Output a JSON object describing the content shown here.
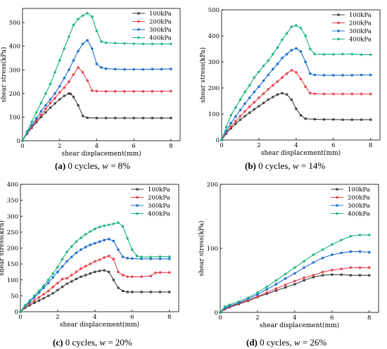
{
  "chart_data": [
    {
      "type": "line",
      "xlabel": "shear displacement(mm)",
      "ylabel": "shear stress(kPa)",
      "xlim": [
        0,
        8.5
      ],
      "ylim": [
        0,
        560
      ],
      "xticks": [
        0,
        2,
        4,
        6,
        8
      ],
      "yticks": [
        0,
        100,
        200,
        300,
        400,
        500
      ],
      "legend_position": "top-right",
      "caption": {
        "letter": "(a)",
        "text": " 0 cycles, ",
        "var": "w",
        "value": " = 8%"
      },
      "series": [
        {
          "name": "100kPa",
          "color": "#404040",
          "x": [
            0,
            0.25,
            0.5,
            0.75,
            1.0,
            1.25,
            1.5,
            1.75,
            2.0,
            2.25,
            2.5,
            2.6,
            2.75,
            3.0,
            3.25,
            3.5,
            4,
            4.5,
            5,
            5.5,
            6,
            6.5,
            7,
            7.5,
            8
          ],
          "y": [
            0,
            30,
            55,
            78,
            100,
            120,
            140,
            158,
            175,
            190,
            200,
            198,
            185,
            150,
            105,
            97,
            96,
            96,
            96,
            96,
            96,
            96,
            96,
            96,
            96
          ]
        },
        {
          "name": "200kPa",
          "color": "#e8434c",
          "x": [
            0,
            0.25,
            0.5,
            0.75,
            1.0,
            1.25,
            1.5,
            1.75,
            2.0,
            2.25,
            2.5,
            2.75,
            3.0,
            3.25,
            3.5,
            3.75,
            4,
            4.5,
            5,
            5.5,
            6,
            6.5,
            7,
            7.5,
            8
          ],
          "y": [
            0,
            32,
            60,
            85,
            110,
            135,
            160,
            180,
            205,
            225,
            250,
            280,
            310,
            290,
            255,
            212,
            210,
            209,
            209,
            209,
            209,
            209,
            209,
            209,
            210
          ]
        },
        {
          "name": "300kPa",
          "color": "#1f6fd1",
          "x": [
            0,
            0.25,
            0.5,
            0.75,
            1.0,
            1.25,
            1.5,
            1.75,
            2.0,
            2.25,
            2.5,
            2.75,
            3.0,
            3.25,
            3.5,
            3.75,
            4,
            4.25,
            4.5,
            5,
            5.5,
            6,
            6.5,
            7,
            7.5,
            8
          ],
          "y": [
            0,
            35,
            65,
            95,
            125,
            150,
            175,
            200,
            230,
            265,
            300,
            340,
            380,
            410,
            425,
            390,
            325,
            310,
            305,
            303,
            302,
            302,
            302,
            303,
            303,
            304
          ]
        },
        {
          "name": "400kPa",
          "color": "#19b37a",
          "x": [
            0,
            0.25,
            0.5,
            0.75,
            1.0,
            1.25,
            1.5,
            1.75,
            2.0,
            2.25,
            2.5,
            2.75,
            3.0,
            3.25,
            3.5,
            3.75,
            4,
            4.25,
            4.5,
            5,
            5.5,
            6,
            6.5,
            7,
            7.5,
            8
          ],
          "y": [
            0,
            40,
            80,
            120,
            160,
            200,
            240,
            290,
            340,
            390,
            440,
            490,
            515,
            530,
            540,
            525,
            465,
            420,
            415,
            413,
            412,
            411,
            410,
            410,
            410,
            410
          ]
        }
      ]
    },
    {
      "type": "line",
      "xlabel": "shear displacement(mm)",
      "ylabel": "shear stress(kPa)",
      "xlim": [
        0,
        8.5
      ],
      "ylim": [
        0,
        500
      ],
      "xticks": [
        0,
        2,
        4,
        6,
        8
      ],
      "yticks": [
        0,
        100,
        200,
        300,
        400,
        500
      ],
      "legend_position": "top-right",
      "caption": {
        "letter": "(b)",
        "text": " 0 cycles, ",
        "var": "w",
        "value": " = 14%"
      },
      "series": [
        {
          "name": "100kPa",
          "color": "#404040",
          "x": [
            0,
            0.25,
            0.5,
            0.75,
            1.0,
            1.25,
            1.5,
            1.75,
            2.0,
            2.25,
            2.5,
            2.75,
            3.0,
            3.25,
            3.5,
            3.75,
            4,
            4.25,
            4.5,
            5,
            5.5,
            6,
            6.5,
            7,
            7.5,
            8
          ],
          "y": [
            0,
            25,
            45,
            62,
            78,
            92,
            105,
            118,
            130,
            142,
            155,
            165,
            175,
            180,
            175,
            155,
            120,
            95,
            82,
            80,
            79,
            79,
            78,
            78,
            78,
            78
          ]
        },
        {
          "name": "200kPa",
          "color": "#e8434c",
          "x": [
            0,
            0.25,
            0.5,
            0.75,
            1.0,
            1.25,
            1.5,
            1.75,
            2.0,
            2.25,
            2.5,
            2.75,
            3.0,
            3.25,
            3.5,
            3.75,
            4,
            4.25,
            4.5,
            4.75,
            5,
            5.5,
            6,
            6.5,
            7,
            7.5,
            8
          ],
          "y": [
            0,
            30,
            52,
            72,
            92,
            110,
            128,
            145,
            162,
            178,
            195,
            210,
            225,
            240,
            255,
            268,
            260,
            235,
            205,
            180,
            178,
            177,
            177,
            177,
            177,
            177,
            177
          ]
        },
        {
          "name": "300kPa",
          "color": "#1f6fd1",
          "x": [
            0,
            0.25,
            0.5,
            0.75,
            1.0,
            1.25,
            1.5,
            1.75,
            2.0,
            2.25,
            2.5,
            2.75,
            3.0,
            3.25,
            3.5,
            3.75,
            4,
            4.25,
            4.5,
            4.75,
            5,
            5.5,
            6,
            6.5,
            7,
            7.5,
            8
          ],
          "y": [
            0,
            35,
            65,
            90,
            115,
            140,
            162,
            185,
            205,
            228,
            250,
            272,
            292,
            315,
            330,
            345,
            352,
            340,
            300,
            255,
            250,
            249,
            249,
            249,
            249,
            250,
            250
          ]
        },
        {
          "name": "400kPa",
          "color": "#19b37a",
          "x": [
            0,
            0.25,
            0.5,
            0.75,
            1.0,
            1.25,
            1.5,
            1.75,
            2.0,
            2.25,
            2.5,
            2.75,
            3.0,
            3.25,
            3.5,
            3.75,
            4,
            4.25,
            4.5,
            4.75,
            5,
            5.5,
            6,
            6.5,
            7,
            7.5,
            8
          ],
          "y": [
            0,
            50,
            95,
            125,
            155,
            185,
            210,
            240,
            262,
            285,
            305,
            330,
            355,
            385,
            410,
            435,
            440,
            430,
            400,
            350,
            330,
            329,
            329,
            330,
            330,
            328,
            328
          ]
        }
      ]
    },
    {
      "type": "line",
      "xlabel": "shear displacement(mm)",
      "ylabel": "shear stress(kPa)",
      "xlim": [
        0,
        8.5
      ],
      "ylim": [
        0,
        400
      ],
      "xticks": [
        0,
        2,
        4,
        6,
        8
      ],
      "yticks": [
        0,
        50,
        100,
        150,
        200,
        250,
        300,
        350,
        400
      ],
      "legend_position": "top-right",
      "caption": {
        "letter": "(c)",
        "text": " 0 cycles, ",
        "var": "w",
        "value": " = 20%"
      },
      "series": [
        {
          "name": "100kPa",
          "color": "#404040",
          "x": [
            0,
            0.25,
            0.5,
            0.75,
            1.0,
            1.25,
            1.5,
            1.75,
            2.0,
            2.25,
            2.5,
            2.75,
            3.0,
            3.25,
            3.5,
            3.75,
            4,
            4.25,
            4.5,
            4.75,
            5,
            5.25,
            5.5,
            5.75,
            6,
            6.5,
            7,
            7.5,
            8
          ],
          "y": [
            0,
            12,
            20,
            28,
            35,
            42,
            50,
            58,
            68,
            78,
            88,
            95,
            103,
            110,
            115,
            120,
            125,
            128,
            130,
            125,
            100,
            75,
            65,
            62,
            62,
            62,
            62,
            62,
            62
          ]
        },
        {
          "name": "200kPa",
          "color": "#e8434c",
          "x": [
            0,
            0.25,
            0.5,
            0.75,
            1.0,
            1.25,
            1.5,
            1.75,
            2.0,
            2.25,
            2.5,
            2.75,
            3.0,
            3.25,
            3.5,
            3.75,
            4,
            4.25,
            4.5,
            4.75,
            5,
            5.25,
            5.5,
            5.75,
            6,
            6.5,
            7,
            7.25,
            7.5,
            8
          ],
          "y": [
            0,
            15,
            25,
            35,
            45,
            55,
            65,
            78,
            90,
            103,
            105,
            115,
            125,
            135,
            143,
            150,
            158,
            163,
            170,
            175,
            165,
            125,
            115,
            110,
            110,
            110,
            112,
            122,
            123,
            123
          ]
        },
        {
          "name": "300kPa",
          "color": "#1f6fd1",
          "x": [
            0,
            0.25,
            0.5,
            0.75,
            1.0,
            1.25,
            1.5,
            1.75,
            2.0,
            2.25,
            2.5,
            2.75,
            3.0,
            3.25,
            3.5,
            3.75,
            4,
            4.25,
            4.5,
            4.75,
            5,
            5.25,
            5.5,
            5.75,
            6,
            6.5,
            7,
            7.5,
            8
          ],
          "y": [
            0,
            18,
            30,
            45,
            60,
            75,
            90,
            108,
            125,
            142,
            158,
            172,
            185,
            195,
            203,
            210,
            215,
            220,
            225,
            228,
            222,
            195,
            172,
            168,
            167,
            166,
            166,
            166,
            166
          ]
        },
        {
          "name": "400kPa",
          "color": "#19b37a",
          "x": [
            0,
            0.25,
            0.5,
            0.75,
            1.0,
            1.25,
            1.5,
            1.75,
            2.0,
            2.25,
            2.5,
            2.75,
            3.0,
            3.25,
            3.5,
            3.75,
            4,
            4.25,
            4.5,
            4.75,
            5,
            5.25,
            5.5,
            5.75,
            6,
            6.25,
            6.5,
            7,
            7.5,
            8
          ],
          "y": [
            0,
            20,
            35,
            50,
            65,
            82,
            100,
            120,
            140,
            165,
            188,
            205,
            220,
            232,
            243,
            252,
            260,
            266,
            270,
            273,
            276,
            280,
            268,
            230,
            195,
            175,
            172,
            172,
            173,
            173
          ]
        }
      ]
    },
    {
      "type": "line",
      "xlabel": "shear displacement(mm)",
      "ylabel": "shear stress(kPa)",
      "xlim": [
        0,
        8.5
      ],
      "ylim": [
        0,
        200
      ],
      "xticks": [
        0,
        2,
        4,
        6,
        8
      ],
      "yticks": [
        0,
        100,
        200
      ],
      "legend_position": "top-right",
      "caption": {
        "letter": "(d)",
        "text": " 0 cycles, ",
        "var": "w",
        "value": " = 26%"
      },
      "series": [
        {
          "name": "100kPa",
          "color": "#404040",
          "x": [
            0,
            0.25,
            0.5,
            1.0,
            1.5,
            2.0,
            2.5,
            3.0,
            3.5,
            4.0,
            4.5,
            5.0,
            5.5,
            6.0,
            6.5,
            7.0,
            7.5,
            8.0
          ],
          "y": [
            0,
            5,
            8,
            13,
            18,
            24,
            29,
            34,
            39,
            44,
            50,
            55,
            58,
            59,
            59,
            58,
            58,
            58
          ]
        },
        {
          "name": "200kPa",
          "color": "#e8434c",
          "x": [
            0,
            0.25,
            0.5,
            1.0,
            1.5,
            2.0,
            2.5,
            3.0,
            3.5,
            4.0,
            4.5,
            5.0,
            5.5,
            6.0,
            6.5,
            7.0,
            7.5,
            8.0
          ],
          "y": [
            0,
            6,
            9,
            14,
            19,
            25,
            31,
            37,
            43,
            49,
            54,
            58,
            63,
            66,
            68,
            70,
            70,
            70
          ]
        },
        {
          "name": "300kPa",
          "color": "#1f6fd1",
          "x": [
            0,
            0.25,
            0.5,
            1.0,
            1.5,
            2.0,
            2.5,
            3.0,
            3.5,
            4.0,
            4.5,
            5.0,
            5.5,
            6.0,
            6.5,
            7.0,
            7.5,
            8.0
          ],
          "y": [
            0,
            7,
            10,
            15,
            21,
            28,
            36,
            44,
            53,
            61,
            70,
            78,
            85,
            90,
            93,
            95,
            95,
            94
          ]
        },
        {
          "name": "400kPa",
          "color": "#19b37a",
          "x": [
            0,
            0.25,
            0.5,
            1.0,
            1.5,
            2.0,
            2.5,
            3.0,
            3.5,
            4.0,
            4.5,
            5.0,
            5.5,
            6.0,
            6.5,
            7.0,
            7.5,
            8.0
          ],
          "y": [
            0,
            9,
            12,
            17,
            23,
            31,
            40,
            50,
            60,
            70,
            80,
            90,
            98,
            106,
            113,
            119,
            121,
            121
          ]
        }
      ]
    }
  ]
}
